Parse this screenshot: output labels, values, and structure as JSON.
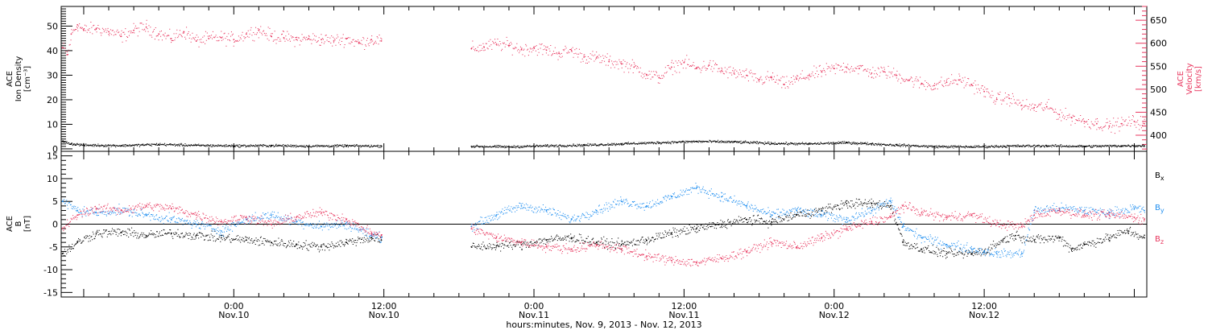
{
  "colors": {
    "black": "#000000",
    "pink": "#e8365e",
    "blue": "#1f8ef0"
  },
  "chart_data": [
    {
      "type": "scatter",
      "panel": "top",
      "left_axis": {
        "label_lines": [
          "ACE",
          "Ion Density",
          "[cm⁻³]"
        ],
        "ylim": [
          -1,
          58
        ],
        "ticks": [
          0,
          10,
          20,
          30,
          40,
          50
        ]
      },
      "right_axis": {
        "label_lines": [
          "ACE",
          "Velocity",
          "[km/s]"
        ],
        "color": "#e8365e",
        "ylim": [
          365,
          680
        ],
        "ticks": [
          400,
          450,
          500,
          550,
          600,
          650
        ]
      },
      "x_unit": "hours since Nov. 9 00:00",
      "xlim": [
        10.2,
        97.0
      ],
      "series": [
        {
          "axis": "right",
          "color": "#e8365e",
          "points": [
            [
              10.3,
              590
            ],
            [
              10.7,
              575
            ],
            [
              11.0,
              620
            ],
            [
              11.5,
              640
            ],
            [
              12.0,
              628
            ],
            [
              13.0,
              632
            ],
            [
              14.0,
              625
            ],
            [
              15.0,
              615
            ],
            [
              16.0,
              628
            ],
            [
              17.0,
              635
            ],
            [
              18.0,
              620
            ],
            [
              19.0,
              610
            ],
            [
              20.0,
              625
            ],
            [
              21.0,
              605
            ],
            [
              22.0,
              610
            ],
            [
              23.0,
              612
            ],
            [
              24.0,
              608
            ],
            [
              25.0,
              620
            ],
            [
              26.0,
              628
            ],
            [
              27.0,
              615
            ],
            [
              28.0,
              612
            ],
            [
              29.0,
              608
            ],
            [
              30.0,
              610
            ],
            [
              31.0,
              608
            ],
            [
              32.0,
              605
            ],
            [
              33.0,
              610
            ],
            [
              34.0,
              600
            ],
            [
              35.0,
              608
            ],
            [
              35.8,
              605
            ],
            [
              43.0,
              588
            ],
            [
              44.0,
              592
            ],
            [
              45.0,
              598
            ],
            [
              46.0,
              595
            ],
            [
              47.0,
              586
            ],
            [
              48.0,
              590
            ],
            [
              49.0,
              585
            ],
            [
              50.0,
              578
            ],
            [
              51.0,
              584
            ],
            [
              52.0,
              570
            ],
            [
              53.0,
              568
            ],
            [
              54.0,
              560
            ],
            [
              55.0,
              555
            ],
            [
              56.0,
              548
            ],
            [
              57.0,
              532
            ],
            [
              58.0,
              525
            ],
            [
              59.0,
              548
            ],
            [
              60.0,
              558
            ],
            [
              61.0,
              545
            ],
            [
              62.0,
              552
            ],
            [
              63.0,
              540
            ],
            [
              64.0,
              535
            ],
            [
              65.0,
              530
            ],
            [
              66.0,
              520
            ],
            [
              67.0,
              525
            ],
            [
              68.0,
              510
            ],
            [
              69.0,
              522
            ],
            [
              70.0,
              530
            ],
            [
              71.0,
              538
            ],
            [
              72.0,
              545
            ],
            [
              73.0,
              548
            ],
            [
              74.0,
              545
            ],
            [
              75.0,
              535
            ],
            [
              76.0,
              538
            ],
            [
              77.0,
              530
            ],
            [
              78.0,
              520
            ],
            [
              79.0,
              512
            ],
            [
              80.0,
              508
            ],
            [
              81.0,
              515
            ],
            [
              82.0,
              520
            ],
            [
              83.0,
              510
            ],
            [
              84.0,
              495
            ],
            [
              85.0,
              478
            ],
            [
              86.0,
              480
            ],
            [
              87.0,
              465
            ],
            [
              88.0,
              460
            ],
            [
              89.0,
              462
            ],
            [
              90.0,
              445
            ],
            [
              91.0,
              438
            ],
            [
              92.0,
              430
            ],
            [
              93.0,
              425
            ],
            [
              94.0,
              420
            ],
            [
              95.0,
              425
            ],
            [
              96.0,
              430
            ],
            [
              96.8,
              425
            ]
          ]
        },
        {
          "axis": "left",
          "color": "#000000",
          "points": [
            [
              10.3,
              3.0
            ],
            [
              11.0,
              2.0
            ],
            [
              12.0,
              1.5
            ],
            [
              15.0,
              1.3
            ],
            [
              18.0,
              1.8
            ],
            [
              21.0,
              1.4
            ],
            [
              24.0,
              1.2
            ],
            [
              27.0,
              1.3
            ],
            [
              30.0,
              1.1
            ],
            [
              33.0,
              1.2
            ],
            [
              35.8,
              1.1
            ],
            [
              43.0,
              1.0
            ],
            [
              46.0,
              0.8
            ],
            [
              49.0,
              1.2
            ],
            [
              52.0,
              1.5
            ],
            [
              55.0,
              2.0
            ],
            [
              58.0,
              2.5
            ],
            [
              61.0,
              3.0
            ],
            [
              64.0,
              2.8
            ],
            [
              67.0,
              2.2
            ],
            [
              70.0,
              2.0
            ],
            [
              73.0,
              2.5
            ],
            [
              75.0,
              2.0
            ],
            [
              77.0,
              1.5
            ],
            [
              80.0,
              0.9
            ],
            [
              83.0,
              0.8
            ],
            [
              86.0,
              1.1
            ],
            [
              89.0,
              1.2
            ],
            [
              92.0,
              1.0
            ],
            [
              95.0,
              1.2
            ],
            [
              96.8,
              1.3
            ]
          ]
        }
      ]
    },
    {
      "type": "scatter",
      "panel": "bottom",
      "left_axis": {
        "label_lines": [
          "ACE",
          "B",
          "[nT]"
        ],
        "ylim": [
          -16,
          16
        ],
        "ticks": [
          -15,
          -10,
          -5,
          0,
          5,
          10,
          15
        ]
      },
      "xlim": [
        10.2,
        97.0
      ],
      "zero_line": true,
      "legend": [
        {
          "label": "B",
          "sub": "x",
          "color": "#000000"
        },
        {
          "label": "B",
          "sub": "y",
          "color": "#1f8ef0"
        },
        {
          "label": "B",
          "sub": "z",
          "color": "#e8365e"
        }
      ],
      "series": [
        {
          "name": "Bx",
          "color": "#000000",
          "points": [
            [
              10.3,
              -6.5
            ],
            [
              11.5,
              -4.0
            ],
            [
              13.0,
              -2.0
            ],
            [
              15.0,
              -1.8
            ],
            [
              17.0,
              -2.5
            ],
            [
              19.0,
              -2.0
            ],
            [
              21.0,
              -2.5
            ],
            [
              23.0,
              -3.0
            ],
            [
              25.0,
              -3.5
            ],
            [
              27.0,
              -4.0
            ],
            [
              29.0,
              -4.5
            ],
            [
              31.0,
              -5.0
            ],
            [
              33.0,
              -4.0
            ],
            [
              35.0,
              -3.0
            ],
            [
              35.8,
              -3.5
            ],
            [
              43.0,
              -5.0
            ],
            [
              45.0,
              -4.8
            ],
            [
              47.0,
              -4.5
            ],
            [
              49.0,
              -3.5
            ],
            [
              51.0,
              -3.0
            ],
            [
              53.0,
              -4.0
            ],
            [
              55.0,
              -4.5
            ],
            [
              57.0,
              -3.5
            ],
            [
              59.0,
              -2.0
            ],
            [
              61.0,
              -1.0
            ],
            [
              63.0,
              0.0
            ],
            [
              65.0,
              1.0
            ],
            [
              67.0,
              0.5
            ],
            [
              69.0,
              2.0
            ],
            [
              71.0,
              3.0
            ],
            [
              73.0,
              4.5
            ],
            [
              75.0,
              4.5
            ],
            [
              76.5,
              4.0
            ],
            [
              77.5,
              -4.0
            ],
            [
              79.0,
              -5.5
            ],
            [
              81.0,
              -6.5
            ],
            [
              83.0,
              -6.5
            ],
            [
              84.0,
              -6.0
            ],
            [
              85.5,
              -3.5
            ],
            [
              86.5,
              -2.5
            ],
            [
              88.0,
              -3.5
            ],
            [
              90.0,
              -3.0
            ],
            [
              91.0,
              -5.5
            ],
            [
              92.0,
              -4.5
            ],
            [
              94.0,
              -3.0
            ],
            [
              95.5,
              -1.5
            ],
            [
              96.8,
              -3.0
            ]
          ]
        },
        {
          "name": "By",
          "color": "#1f8ef0",
          "points": [
            [
              10.3,
              5.0
            ],
            [
              11.5,
              3.0
            ],
            [
              13.0,
              2.5
            ],
            [
              15.0,
              3.0
            ],
            [
              17.0,
              2.0
            ],
            [
              19.0,
              1.0
            ],
            [
              21.0,
              0.0
            ],
            [
              23.0,
              -1.5
            ],
            [
              25.0,
              1.0
            ],
            [
              27.0,
              2.0
            ],
            [
              29.0,
              0.5
            ],
            [
              31.0,
              -0.5
            ],
            [
              33.0,
              0.0
            ],
            [
              35.0,
              -2.5
            ],
            [
              35.8,
              -3.0
            ],
            [
              43.0,
              -0.5
            ],
            [
              45.0,
              2.0
            ],
            [
              47.0,
              4.0
            ],
            [
              49.0,
              3.0
            ],
            [
              51.0,
              1.0
            ],
            [
              53.0,
              3.0
            ],
            [
              55.0,
              5.0
            ],
            [
              57.0,
              4.0
            ],
            [
              59.0,
              6.0
            ],
            [
              61.0,
              8.0
            ],
            [
              63.0,
              6.0
            ],
            [
              65.0,
              4.0
            ],
            [
              67.0,
              2.0
            ],
            [
              69.0,
              3.0
            ],
            [
              71.0,
              2.0
            ],
            [
              73.0,
              1.0
            ],
            [
              75.0,
              3.0
            ],
            [
              76.5,
              5.0
            ],
            [
              77.5,
              -0.5
            ],
            [
              79.0,
              -3.0
            ],
            [
              81.0,
              -4.5
            ],
            [
              83.0,
              -5.5
            ],
            [
              84.0,
              -6.0
            ],
            [
              85.0,
              -6.5
            ],
            [
              87.0,
              -6.5
            ],
            [
              88.0,
              3.0
            ],
            [
              90.0,
              3.5
            ],
            [
              92.0,
              3.0
            ],
            [
              94.0,
              2.5
            ],
            [
              96.0,
              3.5
            ],
            [
              96.8,
              3.0
            ]
          ]
        },
        {
          "name": "Bz",
          "color": "#e8365e",
          "points": [
            [
              10.3,
              -1.0
            ],
            [
              11.5,
              2.0
            ],
            [
              13.0,
              3.5
            ],
            [
              15.0,
              3.0
            ],
            [
              17.0,
              4.0
            ],
            [
              19.0,
              3.5
            ],
            [
              21.0,
              2.0
            ],
            [
              23.0,
              0.5
            ],
            [
              25.0,
              1.5
            ],
            [
              27.0,
              0.0
            ],
            [
              29.0,
              1.5
            ],
            [
              31.0,
              2.5
            ],
            [
              33.0,
              1.0
            ],
            [
              35.0,
              -2.0
            ],
            [
              35.8,
              -2.5
            ],
            [
              43.0,
              -1.0
            ],
            [
              45.0,
              -3.0
            ],
            [
              47.0,
              -4.0
            ],
            [
              49.0,
              -5.0
            ],
            [
              51.0,
              -5.5
            ],
            [
              53.0,
              -4.5
            ],
            [
              55.0,
              -5.5
            ],
            [
              57.0,
              -7.0
            ],
            [
              59.0,
              -8.0
            ],
            [
              61.0,
              -8.5
            ],
            [
              63.0,
              -7.5
            ],
            [
              65.0,
              -6.0
            ],
            [
              67.0,
              -4.0
            ],
            [
              69.0,
              -5.0
            ],
            [
              71.0,
              -3.0
            ],
            [
              73.0,
              -1.0
            ],
            [
              75.0,
              0.5
            ],
            [
              76.5,
              1.5
            ],
            [
              77.5,
              4.0
            ],
            [
              79.0,
              2.5
            ],
            [
              81.0,
              1.5
            ],
            [
              83.0,
              2.0
            ],
            [
              85.0,
              0.0
            ],
            [
              87.0,
              -0.5
            ],
            [
              88.0,
              2.0
            ],
            [
              90.0,
              3.0
            ],
            [
              92.0,
              2.0
            ],
            [
              94.0,
              2.0
            ],
            [
              96.0,
              1.5
            ],
            [
              96.8,
              1.0
            ]
          ]
        }
      ]
    }
  ],
  "x_axis": {
    "tick_hours": [
      24,
      36,
      48,
      60,
      72,
      84
    ],
    "tick_labels": [
      [
        "0:00",
        "Nov.10"
      ],
      [
        "12:00",
        "Nov.10"
      ],
      [
        "0:00",
        "Nov.11"
      ],
      [
        "12:00",
        "Nov.11"
      ],
      [
        "0:00",
        "Nov.12"
      ],
      [
        "12:00",
        "Nov.12"
      ]
    ],
    "minor_step_hours": 2,
    "title": "hours:minutes, Nov.  9, 2013 - Nov. 12, 2013"
  }
}
